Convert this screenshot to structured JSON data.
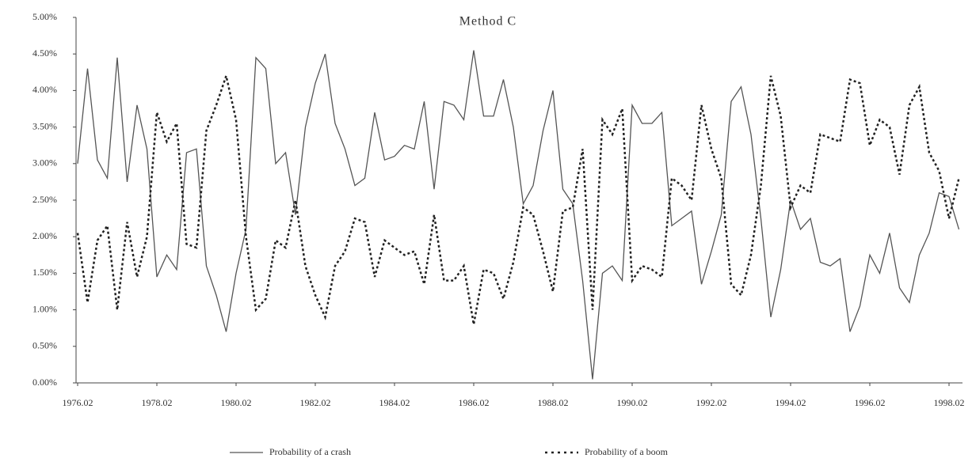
{
  "chart_data": {
    "type": "line",
    "title": "Method C",
    "categories": [
      "1976.02",
      null,
      null,
      null,
      null,
      null,
      null,
      null,
      "1978.02",
      null,
      null,
      null,
      null,
      null,
      null,
      null,
      "1980.02",
      null,
      null,
      null,
      null,
      null,
      null,
      null,
      "1982.02",
      null,
      null,
      null,
      null,
      null,
      null,
      null,
      "1984.02",
      null,
      null,
      null,
      null,
      null,
      null,
      null,
      "1986.02",
      null,
      null,
      null,
      null,
      null,
      null,
      null,
      "1988.02",
      null,
      null,
      null,
      null,
      null,
      null,
      null,
      "1990.02",
      null,
      null,
      null,
      null,
      null,
      null,
      null,
      "1992.02",
      null,
      null,
      null,
      null,
      null,
      null,
      null,
      "1994.02",
      null,
      null,
      null,
      null,
      null,
      null,
      null,
      "1996.02",
      null,
      null,
      null,
      null,
      null,
      null,
      null,
      "1998.02",
      null
    ],
    "series": [
      {
        "name": "Probability of a crash",
        "color": "#555555",
        "dash": false,
        "values": [
          3.0,
          4.3,
          3.05,
          2.8,
          4.45,
          2.75,
          3.8,
          3.2,
          1.45,
          1.75,
          1.55,
          3.15,
          3.2,
          1.6,
          1.2,
          0.7,
          1.5,
          2.1,
          4.45,
          4.3,
          3.0,
          3.15,
          2.3,
          3.5,
          4.1,
          4.5,
          3.55,
          3.2,
          2.7,
          2.8,
          3.7,
          3.05,
          3.1,
          3.25,
          3.2,
          3.85,
          2.65,
          3.85,
          3.8,
          3.6,
          4.55,
          3.65,
          3.65,
          4.15,
          3.5,
          2.45,
          2.7,
          3.45,
          4.0,
          2.65,
          2.45,
          1.4,
          0.05,
          1.5,
          1.6,
          1.4,
          3.8,
          3.55,
          3.55,
          3.7,
          2.15,
          2.25,
          2.35,
          1.35,
          1.8,
          2.3,
          3.85,
          4.05,
          3.4,
          2.25,
          0.9,
          1.55,
          2.5,
          2.1,
          2.25,
          1.65,
          1.6,
          1.7,
          0.7,
          1.05,
          1.75,
          1.5,
          2.05,
          1.3,
          1.1,
          1.75,
          2.05,
          2.6,
          2.55,
          2.1
        ]
      },
      {
        "name": "Probability of a boom",
        "color": "#222222",
        "dash": true,
        "values": [
          2.05,
          1.1,
          1.95,
          2.15,
          1.0,
          2.2,
          1.45,
          2.0,
          3.7,
          3.3,
          3.55,
          1.9,
          1.85,
          3.45,
          3.8,
          4.2,
          3.6,
          2.0,
          1.0,
          1.15,
          1.95,
          1.85,
          2.5,
          1.6,
          1.2,
          0.9,
          1.6,
          1.8,
          2.25,
          2.2,
          1.45,
          1.95,
          1.85,
          1.75,
          1.8,
          1.35,
          2.3,
          1.4,
          1.4,
          1.6,
          0.8,
          1.55,
          1.5,
          1.15,
          1.65,
          2.4,
          2.3,
          1.8,
          1.25,
          2.35,
          2.4,
          3.2,
          1.0,
          3.6,
          3.4,
          3.75,
          1.4,
          1.6,
          1.55,
          1.45,
          2.8,
          2.7,
          2.5,
          3.8,
          3.2,
          2.8,
          1.35,
          1.2,
          1.75,
          2.7,
          4.2,
          3.65,
          2.4,
          2.7,
          2.6,
          3.4,
          3.35,
          3.3,
          4.15,
          4.1,
          3.25,
          3.6,
          3.5,
          2.85,
          3.8,
          4.05,
          3.15,
          2.9,
          2.25,
          2.8
        ]
      }
    ],
    "ylim": [
      0,
      5
    ],
    "yticks": [
      {
        "value": 0,
        "label": "0.00%"
      },
      {
        "value": 0.5,
        "label": "0.50%"
      },
      {
        "value": 1,
        "label": "1.00%"
      },
      {
        "value": 1.5,
        "label": "1.50%"
      },
      {
        "value": 2,
        "label": "2.00%"
      },
      {
        "value": 2.5,
        "label": "2.50%"
      },
      {
        "value": 3,
        "label": "3.00%"
      },
      {
        "value": 3.5,
        "label": "3.50%"
      },
      {
        "value": 4,
        "label": "4.00%"
      },
      {
        "value": 4.5,
        "label": "4.50%"
      },
      {
        "value": 5,
        "label": "5.00%"
      }
    ],
    "grid": false,
    "legend": "bottom"
  }
}
